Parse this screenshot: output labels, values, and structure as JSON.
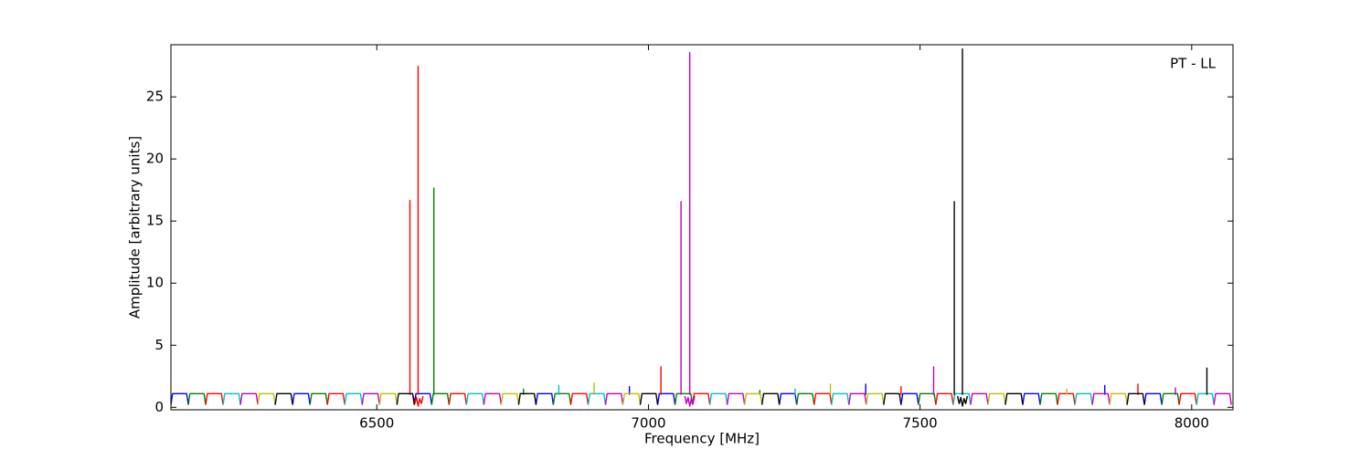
{
  "chart_data": {
    "type": "line",
    "annotation": "PT - LL",
    "xlabel": "Frequency [MHz]",
    "ylabel": "Amplitude [arbitrary units]",
    "xlim": [
      6121,
      8076
    ],
    "ylim": [
      -0.2,
      29.2
    ],
    "xticks": [
      6500,
      7000,
      7500,
      8000
    ],
    "yticks": [
      0,
      5,
      10,
      15,
      20,
      25
    ],
    "grid": false,
    "series": [
      {
        "color": "#0000ff",
        "x": [
          6121,
          6124,
          6150,
          6153,
          null,
          6345,
          6348,
          6374,
          6377,
          null,
          6569,
          6572,
          6598,
          6601,
          null,
          6793,
          6796,
          6822,
          6825,
          null,
          7017,
          7020,
          7046,
          7049,
          null,
          7241,
          7244,
          7270,
          7273,
          null,
          7465,
          7468,
          7494,
          7497,
          null,
          7689,
          7692,
          7718,
          7721,
          null,
          7913,
          7916,
          7942,
          7945,
          null,
          6965,
          6965,
          null,
          7400,
          7400,
          null,
          7840,
          7840
        ],
        "values": [
          0.2,
          1.1,
          1.1,
          0.2,
          null,
          0.2,
          1.1,
          1.1,
          0.2,
          null,
          0.2,
          1.1,
          1.1,
          0.2,
          null,
          0.2,
          1.1,
          1.1,
          0.2,
          null,
          0.2,
          1.1,
          1.1,
          0.2,
          null,
          0.2,
          1.1,
          1.1,
          0.2,
          null,
          0.2,
          1.1,
          1.1,
          0.2,
          null,
          0.2,
          1.1,
          1.1,
          0.2,
          null,
          0.2,
          1.1,
          1.1,
          0.2,
          null,
          1,
          1.7,
          null,
          1,
          1.9,
          null,
          1,
          1.8
        ]
      },
      {
        "color": "#008000",
        "x": [
          6153,
          6156,
          6182,
          6185,
          null,
          6377,
          6380,
          6406,
          6409,
          null,
          6601,
          6604,
          6630,
          6633,
          null,
          6825,
          6828,
          6854,
          6857,
          null,
          7049,
          7052,
          7078,
          7081,
          null,
          7273,
          7276,
          7302,
          7305,
          null,
          7497,
          7500,
          7526,
          7529,
          null,
          7721,
          7724,
          7750,
          7753,
          null,
          7945,
          7948,
          7974,
          7977,
          null,
          6605,
          6605,
          null,
          6770,
          6770,
          null,
          7205,
          7205
        ],
        "values": [
          0.2,
          1.1,
          1.1,
          0.2,
          null,
          0.2,
          1.1,
          1.1,
          0.2,
          null,
          0.2,
          1.1,
          1.1,
          0.2,
          null,
          0.2,
          1.1,
          1.1,
          0.2,
          null,
          0.2,
          1.1,
          1.1,
          0.2,
          null,
          0.2,
          1.1,
          1.1,
          0.2,
          null,
          0.2,
          1.1,
          1.1,
          0.2,
          null,
          0.2,
          1.1,
          1.1,
          0.2,
          null,
          0.2,
          1.1,
          1.1,
          0.2,
          null,
          1,
          17.7,
          null,
          1,
          1.5,
          null,
          1,
          1.4
        ]
      },
      {
        "color": "#ff0000",
        "x": [
          6185,
          6188,
          6214,
          6217,
          null,
          6409,
          6412,
          6438,
          6441,
          null,
          6633,
          6636,
          6662,
          6665,
          null,
          6857,
          6860,
          6886,
          6889,
          null,
          7081,
          7084,
          7110,
          7113,
          null,
          7305,
          7308,
          7334,
          7337,
          null,
          7529,
          7532,
          7558,
          7561,
          null,
          7753,
          7756,
          7782,
          7785,
          null,
          7977,
          7980,
          8006,
          8009,
          null,
          6561,
          6561,
          null,
          6567,
          6570,
          6573,
          6576,
          6579,
          6582,
          6585,
          null,
          6576,
          6576,
          null,
          7023,
          7023,
          null,
          7465,
          7465,
          null,
          7901,
          7901
        ],
        "values": [
          0.2,
          1.1,
          1.1,
          0.2,
          null,
          0.2,
          1.1,
          1.1,
          0.2,
          null,
          0.2,
          1.1,
          1.1,
          0.2,
          null,
          0.2,
          1.1,
          1.1,
          0.2,
          null,
          0.2,
          1.1,
          1.1,
          0.2,
          null,
          0.2,
          1.1,
          1.1,
          0.2,
          null,
          0.2,
          1.1,
          1.1,
          0.2,
          null,
          0.2,
          1.1,
          1.1,
          0.2,
          null,
          0.2,
          1.1,
          1.1,
          0.2,
          null,
          1,
          16.7,
          null,
          0.9,
          0.3,
          0.8,
          0.1,
          0.7,
          0.3,
          0.9,
          null,
          1,
          27.5,
          null,
          1,
          3.3,
          null,
          1,
          1.7,
          null,
          1,
          1.9
        ]
      },
      {
        "color": "#00bfbf",
        "x": [
          6217,
          6220,
          6246,
          6249,
          null,
          6441,
          6444,
          6470,
          6473,
          null,
          6665,
          6668,
          6694,
          6697,
          null,
          6889,
          6892,
          6918,
          6921,
          null,
          7113,
          7116,
          7142,
          7145,
          null,
          7337,
          7340,
          7366,
          7369,
          null,
          7561,
          7564,
          7590,
          7593,
          null,
          7785,
          7788,
          7814,
          7817,
          null,
          8009,
          8012,
          8038,
          8041,
          null,
          6835,
          6835,
          null,
          7270,
          7270
        ],
        "values": [
          0.2,
          1.1,
          1.1,
          0.2,
          null,
          0.2,
          1.1,
          1.1,
          0.2,
          null,
          0.2,
          1.1,
          1.1,
          0.2,
          null,
          0.2,
          1.1,
          1.1,
          0.2,
          null,
          0.2,
          1.1,
          1.1,
          0.2,
          null,
          0.2,
          1.1,
          1.1,
          0.2,
          null,
          0.2,
          1.1,
          1.1,
          0.2,
          null,
          0.2,
          1.1,
          1.1,
          0.2,
          null,
          0.2,
          1.1,
          1.1,
          0.2,
          null,
          1,
          1.8,
          null,
          1,
          1.5
        ]
      },
      {
        "color": "#bf00bf",
        "x": [
          6249,
          6252,
          6278,
          6281,
          null,
          6473,
          6476,
          6502,
          6505,
          null,
          6697,
          6700,
          6726,
          6729,
          null,
          6921,
          6924,
          6950,
          6953,
          null,
          7145,
          7148,
          7174,
          7177,
          null,
          7369,
          7372,
          7398,
          7401,
          null,
          7593,
          7596,
          7622,
          7625,
          null,
          7817,
          7820,
          7846,
          7849,
          null,
          8041,
          8044,
          8070,
          8073,
          null,
          7060,
          7060,
          null,
          7067,
          7070,
          7073,
          7076,
          7079,
          7082,
          7085,
          null,
          7076,
          7076,
          null,
          7525,
          7525,
          null,
          7970,
          7970
        ],
        "values": [
          0.2,
          1.1,
          1.1,
          0.2,
          null,
          0.2,
          1.1,
          1.1,
          0.2,
          null,
          0.2,
          1.1,
          1.1,
          0.2,
          null,
          0.2,
          1.1,
          1.1,
          0.2,
          null,
          0.2,
          1.1,
          1.1,
          0.2,
          null,
          0.2,
          1.1,
          1.1,
          0.2,
          null,
          0.2,
          1.1,
          1.1,
          0.2,
          null,
          0.2,
          1.1,
          1.1,
          0.2,
          null,
          0.2,
          1.1,
          1.1,
          0.2,
          null,
          1,
          16.6,
          null,
          0.9,
          0.3,
          0.8,
          0.1,
          0.7,
          0.3,
          0.9,
          null,
          1,
          28.6,
          null,
          1,
          3.3,
          null,
          1,
          1.6
        ]
      },
      {
        "color": "#bfbf00",
        "x": [
          6281,
          6284,
          6310,
          6313,
          null,
          6505,
          6508,
          6534,
          6537,
          null,
          6729,
          6732,
          6758,
          6761,
          null,
          6953,
          6956,
          6982,
          6985,
          null,
          7177,
          7180,
          7206,
          7209,
          null,
          7401,
          7404,
          7430,
          7433,
          null,
          7625,
          7628,
          7654,
          7657,
          null,
          7849,
          7852,
          7878,
          7881,
          null,
          6900,
          6900,
          null,
          7335,
          7335,
          null,
          7770,
          7770
        ],
        "values": [
          0.2,
          1.1,
          1.1,
          0.2,
          null,
          0.2,
          1.1,
          1.1,
          0.2,
          null,
          0.2,
          1.1,
          1.1,
          0.2,
          null,
          0.2,
          1.1,
          1.1,
          0.2,
          null,
          0.2,
          1.1,
          1.1,
          0.2,
          null,
          0.2,
          1.1,
          1.1,
          0.2,
          null,
          0.2,
          1.1,
          1.1,
          0.2,
          null,
          0.2,
          1.1,
          1.1,
          0.2,
          null,
          1,
          2.0,
          null,
          1,
          1.9,
          null,
          1,
          1.5
        ]
      },
      {
        "color": "#000000",
        "x": [
          6313,
          6316,
          6342,
          6345,
          null,
          6537,
          6540,
          6566,
          6569,
          null,
          6761,
          6764,
          6790,
          6793,
          null,
          6985,
          6988,
          7014,
          7017,
          null,
          7209,
          7212,
          7238,
          7241,
          null,
          7433,
          7436,
          7462,
          7465,
          null,
          7657,
          7660,
          7686,
          7689,
          null,
          7881,
          7884,
          7910,
          7913,
          null,
          7563,
          7563,
          null,
          7569,
          7572,
          7575,
          7578,
          7581,
          7584,
          7587,
          null,
          7578,
          7578,
          null,
          8028,
          8028
        ],
        "values": [
          0.2,
          1.1,
          1.1,
          0.2,
          null,
          0.2,
          1.1,
          1.1,
          0.2,
          null,
          0.2,
          1.1,
          1.1,
          0.2,
          null,
          0.2,
          1.1,
          1.1,
          0.2,
          null,
          0.2,
          1.1,
          1.1,
          0.2,
          null,
          0.2,
          1.1,
          1.1,
          0.2,
          null,
          0.2,
          1.1,
          1.1,
          0.2,
          null,
          0.2,
          1.1,
          1.1,
          0.2,
          null,
          1,
          16.6,
          null,
          0.9,
          0.3,
          0.8,
          0.1,
          0.7,
          0.3,
          0.9,
          null,
          1,
          28.9,
          null,
          1,
          3.2
        ]
      }
    ]
  }
}
